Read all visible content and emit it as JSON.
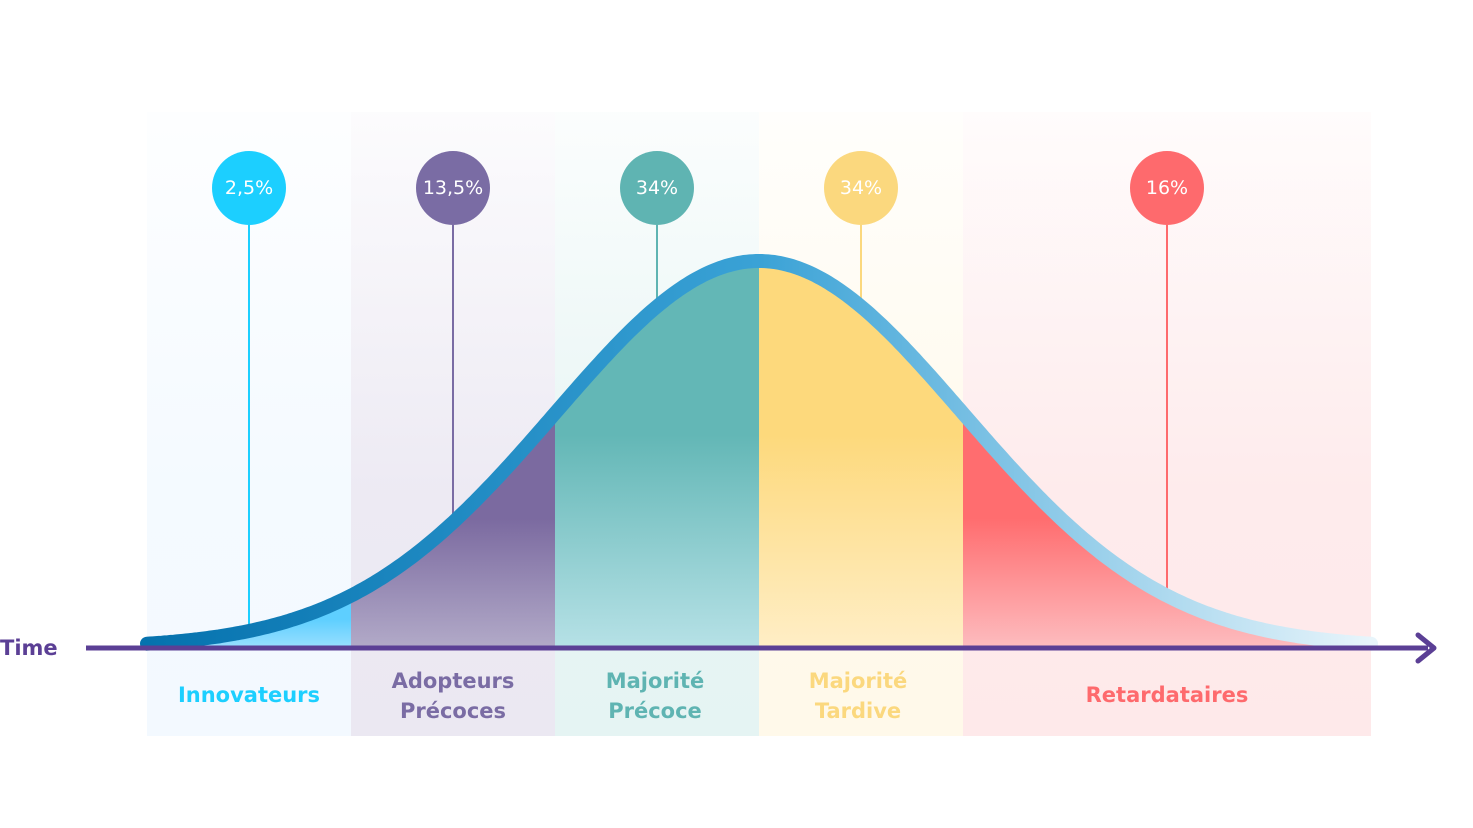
{
  "axis": {
    "label": "Time"
  },
  "segments": [
    {
      "id": "innovateurs",
      "percent": "2,5%",
      "label_lines": [
        "Innovateurs"
      ],
      "color": "#1ccfff",
      "label_color": "#1ccfff",
      "band_color": "#f3f9ff",
      "fill_top": "#5ecfff",
      "fill_bottom": "#9adfff"
    },
    {
      "id": "adopteurs-precoces",
      "percent": "13,5%",
      "label_lines": [
        "Adopteurs",
        "Précoces"
      ],
      "color": "#7a6ca4",
      "label_color": "#7a6ca4",
      "band_color": "#ebe8f2",
      "fill_top": "#7b6aa0",
      "fill_bottom": "#b2aac8"
    },
    {
      "id": "majorite-precoce",
      "percent": "34%",
      "label_lines": [
        "Majorité",
        "Précoce"
      ],
      "color": "#5fb4b2",
      "label_color": "#5fb4b2",
      "band_color": "#e5f4f3",
      "fill_top": "#63b7b6",
      "fill_bottom": "#b6e1e6"
    },
    {
      "id": "majorite-tardive",
      "percent": "34%",
      "label_lines": [
        "Majorité",
        "Tardive"
      ],
      "color": "#fbd87e",
      "label_color": "#fbd87e",
      "band_color": "#fff9ea",
      "fill_top": "#fdd97c",
      "fill_bottom": "#ffeec6"
    },
    {
      "id": "retardataires",
      "percent": "16%",
      "label_lines": [
        "Retardataires"
      ],
      "color": "#fe6a6d",
      "label_color": "#fe6a6d",
      "band_color": "#fee9ea",
      "fill_top": "#ff6d6f",
      "fill_bottom": "#fdbcbf"
    }
  ],
  "colors": {
    "axis": "#5b3f95",
    "curve_start": "#0572ae",
    "curve_peak": "#3aa2d6",
    "curve_end": "#e8f5fb"
  }
}
